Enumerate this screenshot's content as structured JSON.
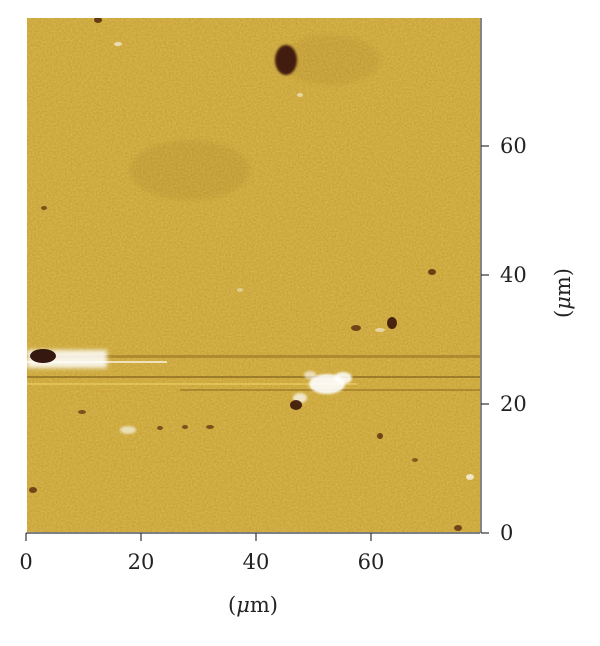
{
  "x_axis": {
    "ticks": [
      {
        "value": 0,
        "label": "0"
      },
      {
        "value": 20,
        "label": "20"
      },
      {
        "value": 40,
        "label": "40"
      },
      {
        "value": 60,
        "label": "60"
      }
    ],
    "unit_prefix": "(",
    "unit_mu": "μ",
    "unit_suffix": "m)"
  },
  "y_axis": {
    "ticks": [
      {
        "value": 0,
        "label": "0"
      },
      {
        "value": 20,
        "label": "20"
      },
      {
        "value": 40,
        "label": "40"
      },
      {
        "value": 60,
        "label": "60"
      }
    ],
    "unit_prefix": "(",
    "unit_mu": "μ",
    "unit_suffix": "m)"
  },
  "colors": {
    "base": "#c59a27",
    "light": "#e3c04a",
    "dark": "#8a6418",
    "pit": "#3a1508",
    "bright": "#ffffff"
  }
}
